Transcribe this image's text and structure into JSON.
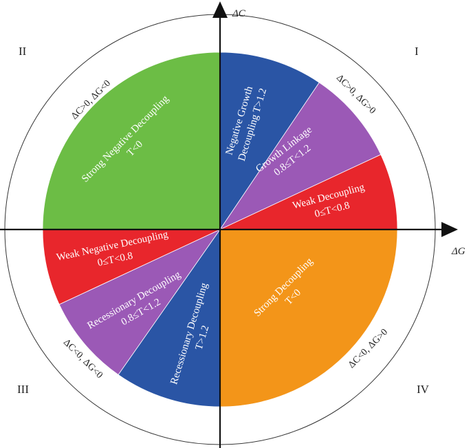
{
  "axes": {
    "x_label": "ΔG",
    "y_label": "ΔC"
  },
  "quadrants": {
    "q1": {
      "numeral": "I",
      "condition": "ΔC>0, ΔG>0"
    },
    "q2": {
      "numeral": "II",
      "condition": "ΔC>0, ΔG<0"
    },
    "q3": {
      "numeral": "III",
      "condition": "ΔC<0, ΔG<0"
    },
    "q4": {
      "numeral": "IV",
      "condition": "ΔC<0, ΔG>0"
    }
  },
  "sectors": {
    "negative_growth": {
      "line1": "Negative Growth",
      "line2": "Decoupling   T>1.2",
      "color": "#2a55a5"
    },
    "growth_linkage": {
      "line1": "Growth Linkage",
      "line2": "0.8≤T<1.2",
      "color": "#9b59b6"
    },
    "weak_decoupling": {
      "line1": "Weak Decoupling",
      "line2": "0≤T<0.8",
      "color": "#e8262c"
    },
    "strong_decoupling": {
      "line1": "Strong Decoupling",
      "line2": "T<0",
      "color": "#f39519"
    },
    "recessionary_decoupling": {
      "line1": "Recessionary Decoupling",
      "line2": "T>1.2",
      "color": "#2a55a5"
    },
    "recessionary_linkage": {
      "line1": "Recessionary Decoupling",
      "line2": "0.8≤T<1.2",
      "color": "#9b59b6"
    },
    "weak_negative": {
      "line1": "Weak Negative Decoupling",
      "line2": "0≤T<0.8",
      "color": "#e8262c"
    },
    "strong_negative": {
      "line1": "Strong Negative Decoupling",
      "line2": "T<0",
      "color": "#6cbd45"
    }
  }
}
